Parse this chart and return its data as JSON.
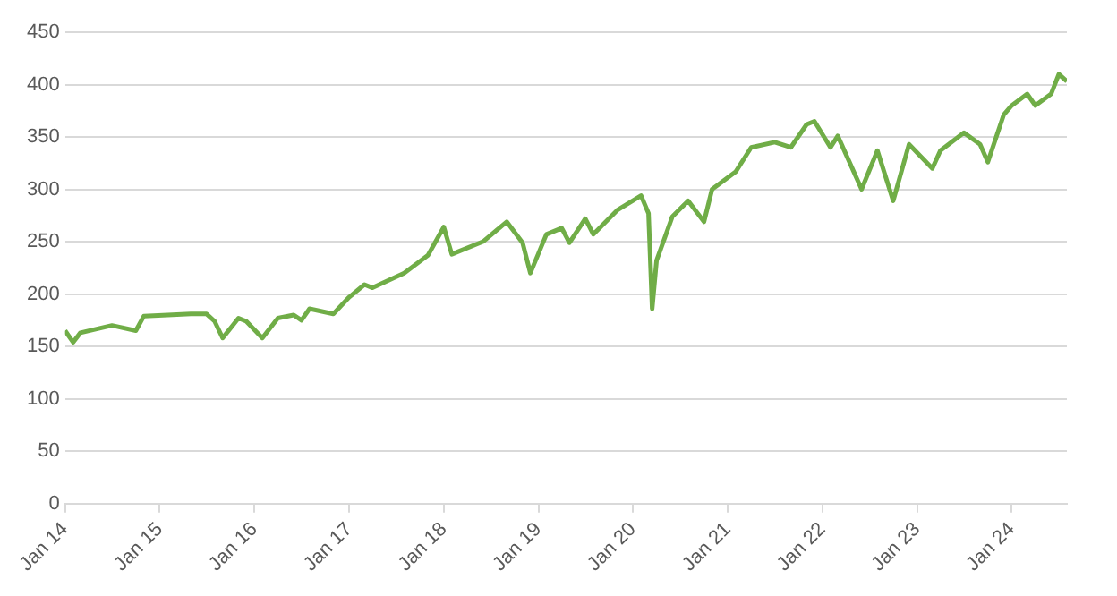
{
  "chart_data": {
    "type": "line",
    "color": "#70ad47",
    "grid": "y",
    "marker": "none",
    "line_style": "solid",
    "xlim": [
      "2014-01",
      "2024-08"
    ],
    "xticks": [
      {
        "value": "2014-01",
        "label": "Jan 14"
      },
      {
        "value": "2015-01",
        "label": "Jan 15"
      },
      {
        "value": "2016-01",
        "label": "Jan 16"
      },
      {
        "value": "2017-01",
        "label": "Jan 17"
      },
      {
        "value": "2018-01",
        "label": "Jan 18"
      },
      {
        "value": "2019-01",
        "label": "Jan 19"
      },
      {
        "value": "2020-01",
        "label": "Jan 20"
      },
      {
        "value": "2021-01",
        "label": "Jan 21"
      },
      {
        "value": "2022-01",
        "label": "Jan 22"
      },
      {
        "value": "2023-01",
        "label": "Jan 23"
      },
      {
        "value": "2024-01",
        "label": "Jan 24"
      }
    ],
    "ylim": [
      0,
      450
    ],
    "yticks": [
      0,
      50,
      100,
      150,
      200,
      250,
      300,
      350,
      400,
      450
    ],
    "x": [
      "2014-01",
      "2014-02",
      "2014-03",
      "2014-07",
      "2014-10",
      "2014-11",
      "2015-02",
      "2015-05",
      "2015-07",
      "2015-08",
      "2015-09",
      "2015-11",
      "2015-12",
      "2016-02",
      "2016-04",
      "2016-06",
      "2016-07",
      "2016-08",
      "2016-11",
      "2017-01",
      "2017-03",
      "2017-04",
      "2017-08",
      "2017-11",
      "2018-01",
      "2018-02",
      "2018-06",
      "2018-09",
      "2018-11",
      "2018-12",
      "2019-02",
      "2019-04",
      "2019-05",
      "2019-07",
      "2019-08",
      "2019-11",
      "2020-02",
      "2020-03-01",
      "2020-03-15",
      "2020-04",
      "2020-06",
      "2020-08",
      "2020-10",
      "2020-11",
      "2021-02",
      "2021-04",
      "2021-07",
      "2021-09",
      "2021-11",
      "2021-12",
      "2022-02",
      "2022-03",
      "2022-06",
      "2022-08",
      "2022-10",
      "2022-12",
      "2023-03",
      "2023-04",
      "2023-07",
      "2023-09",
      "2023-10",
      "2023-12",
      "2024-01",
      "2024-03",
      "2024-04",
      "2024-06",
      "2024-07",
      "2024-08"
    ],
    "values": [
      165,
      154,
      163,
      170,
      165,
      179,
      180,
      181,
      181,
      174,
      158,
      177,
      174,
      158,
      177,
      180,
      175,
      186,
      181,
      197,
      209,
      206,
      220,
      237,
      264,
      238,
      250,
      269,
      249,
      220,
      257,
      263,
      249,
      272,
      257,
      280,
      294,
      277,
      186,
      232,
      274,
      289,
      269,
      300,
      317,
      340,
      345,
      340,
      362,
      365,
      340,
      351,
      300,
      337,
      289,
      343,
      320,
      337,
      354,
      343,
      326,
      371,
      380,
      391,
      380,
      391,
      410,
      403
    ]
  }
}
